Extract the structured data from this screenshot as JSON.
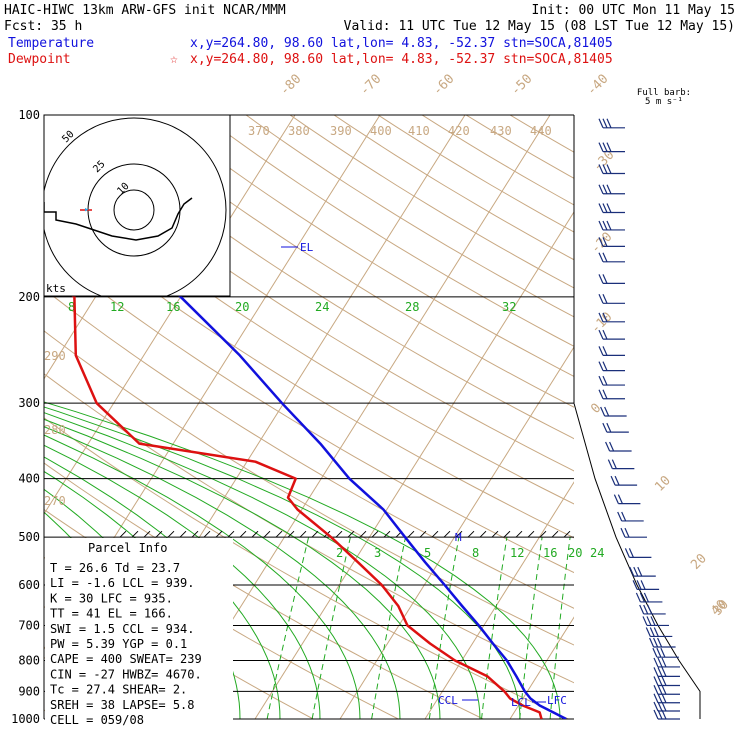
{
  "header": {
    "line1_left": "HAIC-HIWC 13km ARW-GFS init   NCAR/MMM",
    "line1_right": "Init: 00 UTC Mon 11 May 15",
    "line2_left": "Fcst:   35 h",
    "line2_right": "Valid: 11 UTC Tue 12 May 15 (08 LST Tue 12 May 15)",
    "temp_label": "Temperature",
    "temp_info": "x,y=264.80, 98.60   lat,lon=  4.83, -52.37   stn=SOCA,81405",
    "dew_label": "Dewpoint",
    "dew_star": "☆",
    "dew_info": "x,y=264.80, 98.60   lat,lon=  4.83, -52.37   stn=SOCA,81405",
    "temp_color": "#1111dd",
    "dew_color": "#dd1111"
  },
  "barb_header": {
    "line1": "Full barb:",
    "line2": "5 m s⁻¹"
  },
  "hodograph": {
    "rings": [
      "50",
      "25",
      "10"
    ],
    "units": "kts"
  },
  "pressure_labels": [
    "100",
    "200",
    "300",
    "400",
    "500",
    "600",
    "700",
    "800",
    "900",
    "1000"
  ],
  "isotherm_labels": [
    "-80",
    "-70",
    "-60",
    "-50",
    "-40",
    "-30",
    "-20",
    "-10",
    "0",
    "10",
    "20",
    "30",
    "40"
  ],
  "theta_labels": [
    "370",
    "380",
    "390",
    "400",
    "410",
    "420",
    "430",
    "440",
    "290",
    "280",
    "270"
  ],
  "mixing_labels_upper": [
    "8",
    "12",
    "16",
    "20",
    "24",
    "28",
    "32"
  ],
  "mixing_labels_lower": [
    "2",
    "3",
    "5",
    "8",
    "12",
    "16",
    "20",
    "24"
  ],
  "level_markers": {
    "el": "EL",
    "m": "M",
    "ccl": "CCL",
    "lcl": "LCL",
    "lfc": "LFC"
  },
  "parcel": {
    "title": "Parcel Info",
    "rows": [
      "T  =   26.6  Td =  23.7",
      "LI =   -1.6  LCL =  939.",
      "K  =     30  LFC =  935.",
      "TT =     41  EL  =  166.",
      "SWI =   1.5  CCL =  934.",
      "PW =   5.39  YGP =   0.1",
      "CAPE =  400  SWEAT=  239",
      "CIN =   -27  HWBZ= 4670.",
      "Tc =   27.4  SHEAR=   2.",
      "SREH =   38  LAPSE=   5.8",
      "CELL = 059/08"
    ]
  },
  "chart_data": {
    "type": "line",
    "title": "",
    "xlabel": "",
    "ylabel": "",
    "y_scale": "log-pressure",
    "ylim": [
      1000,
      100
    ],
    "series": [
      {
        "name": "Temperature",
        "pressure": [
          1000,
          975,
          950,
          925,
          900,
          850,
          800,
          750,
          700,
          650,
          600,
          550,
          500,
          450,
          400,
          350,
          300,
          250,
          200,
          175,
          150,
          125,
          100
        ],
        "values": [
          26.6,
          24.6,
          22.5,
          20.9,
          19.7,
          17.6,
          15.3,
          12.4,
          9.4,
          6.0,
          2.4,
          -1.6,
          -5.8,
          -10.4,
          -16.7,
          -22.7,
          -30.2,
          -38.7,
          -50.0,
          -58.0,
          -66.4,
          -75.0,
          -86.0
        ]
      },
      {
        "name": "Dewpoint",
        "pressure": [
          1000,
          975,
          950,
          925,
          900,
          850,
          800,
          750,
          700,
          650,
          600,
          550,
          500,
          450,
          430,
          400,
          375,
          350,
          300,
          250,
          200,
          175,
          150,
          125,
          100
        ],
        "values": [
          23.7,
          23.0,
          20.5,
          18.5,
          17.3,
          14.2,
          9.2,
          5.0,
          1.0,
          -1.5,
          -5.0,
          -9.5,
          -14.5,
          -20.5,
          -22.5,
          -23.0,
          -29.0,
          -44.0,
          -52.0,
          -58.0,
          -62.5,
          -72.0,
          -78.0,
          -84.0,
          -89.0
        ]
      }
    ],
    "hodograph_path": [
      [
        -22,
        0
      ],
      [
        -22,
        5
      ],
      [
        -16,
        5
      ],
      [
        -16,
        9
      ],
      [
        -6,
        11
      ],
      [
        0,
        13
      ],
      [
        12,
        17
      ],
      [
        24,
        19
      ],
      [
        35,
        17
      ],
      [
        42,
        13
      ],
      [
        45,
        6
      ],
      [
        48,
        1
      ],
      [
        52,
        -2
      ]
    ],
    "wind_barbs": [
      {
        "p": 105,
        "speed": 15,
        "dir": 270
      },
      {
        "p": 115,
        "speed": 15,
        "dir": 270
      },
      {
        "p": 125,
        "speed": 15,
        "dir": 270
      },
      {
        "p": 135,
        "speed": 15,
        "dir": 275
      },
      {
        "p": 145,
        "speed": 15,
        "dir": 275
      },
      {
        "p": 155,
        "speed": 15,
        "dir": 275
      },
      {
        "p": 165,
        "speed": 10,
        "dir": 270
      },
      {
        "p": 175,
        "speed": 10,
        "dir": 270
      },
      {
        "p": 190,
        "speed": 10,
        "dir": 270
      },
      {
        "p": 205,
        "speed": 10,
        "dir": 270
      },
      {
        "p": 220,
        "speed": 10,
        "dir": 275
      },
      {
        "p": 235,
        "speed": 10,
        "dir": 275
      },
      {
        "p": 250,
        "speed": 10,
        "dir": 270
      },
      {
        "p": 265,
        "speed": 10,
        "dir": 270
      },
      {
        "p": 280,
        "speed": 10,
        "dir": 265
      },
      {
        "p": 295,
        "speed": 10,
        "dir": 265
      },
      {
        "p": 315,
        "speed": 10,
        "dir": 260
      },
      {
        "p": 335,
        "speed": 10,
        "dir": 250
      },
      {
        "p": 360,
        "speed": 10,
        "dir": 230
      },
      {
        "p": 385,
        "speed": 10,
        "dir": 210
      },
      {
        "p": 410,
        "speed": 10,
        "dir": 200
      },
      {
        "p": 440,
        "speed": 10,
        "dir": 200
      },
      {
        "p": 470,
        "speed": 10,
        "dir": 200
      },
      {
        "p": 500,
        "speed": 10,
        "dir": 200
      },
      {
        "p": 540,
        "speed": 10,
        "dir": 205
      },
      {
        "p": 580,
        "speed": 15,
        "dir": 90
      },
      {
        "p": 610,
        "speed": 15,
        "dir": 90
      },
      {
        "p": 640,
        "speed": 15,
        "dir": 90
      },
      {
        "p": 670,
        "speed": 15,
        "dir": 90
      },
      {
        "p": 700,
        "speed": 15,
        "dir": 90
      },
      {
        "p": 730,
        "speed": 15,
        "dir": 90
      },
      {
        "p": 760,
        "speed": 15,
        "dir": 95
      },
      {
        "p": 790,
        "speed": 15,
        "dir": 95
      },
      {
        "p": 820,
        "speed": 15,
        "dir": 95
      },
      {
        "p": 850,
        "speed": 15,
        "dir": 95
      },
      {
        "p": 880,
        "speed": 15,
        "dir": 95
      },
      {
        "p": 910,
        "speed": 15,
        "dir": 100
      },
      {
        "p": 940,
        "speed": 15,
        "dir": 100
      },
      {
        "p": 970,
        "speed": 15,
        "dir": 100
      },
      {
        "p": 1000,
        "speed": 15,
        "dir": 100
      }
    ],
    "legend": "top-left",
    "grid": true
  }
}
